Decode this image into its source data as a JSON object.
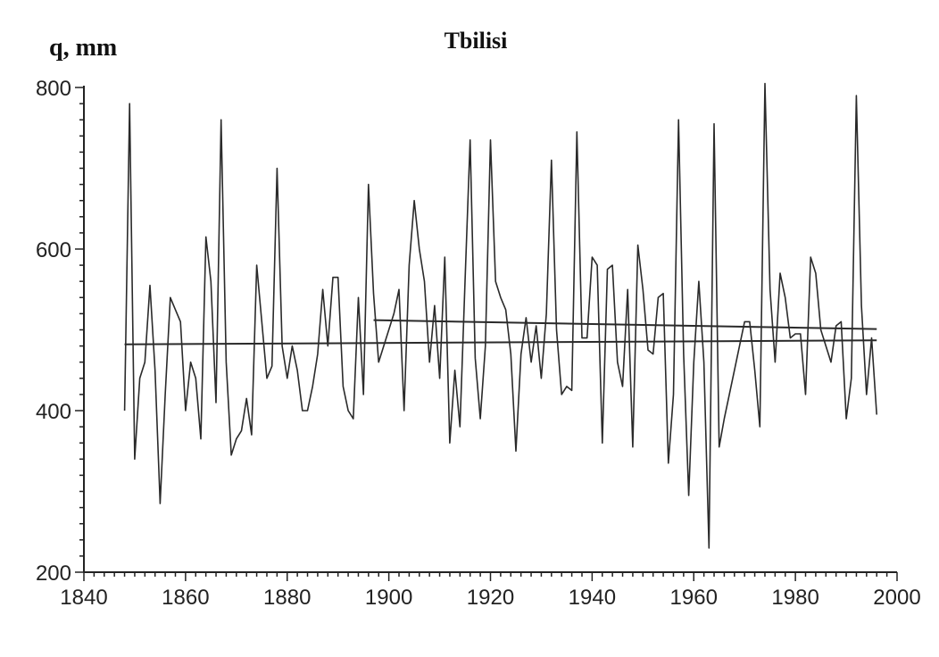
{
  "chart_data": {
    "type": "line",
    "title": "Tbilisi",
    "ylabel": "q, mm",
    "xlabel": "",
    "xlim": [
      1840,
      2000
    ],
    "ylim": [
      200,
      800
    ],
    "x_ticks": [
      1840,
      1860,
      1880,
      1900,
      1920,
      1940,
      1960,
      1980,
      2000
    ],
    "y_ticks": [
      200,
      400,
      600,
      800
    ],
    "grid": false,
    "legend": "none",
    "series": [
      {
        "x": [
          1848,
          1849,
          1850,
          1851,
          1852,
          1853,
          1854,
          1855,
          1856,
          1857,
          1858,
          1859,
          1860,
          1861,
          1862,
          1863,
          1864,
          1865,
          1866,
          1867,
          1868,
          1869,
          1870,
          1871,
          1872,
          1873,
          1874,
          1875,
          1876,
          1877,
          1878,
          1879,
          1880,
          1881,
          1882,
          1883,
          1884,
          1885,
          1886,
          1887,
          1888,
          1889,
          1890,
          1891,
          1892,
          1893,
          1894,
          1895,
          1896,
          1897,
          1898,
          1899,
          1900,
          1901,
          1902,
          1903,
          1904,
          1905,
          1906,
          1907,
          1908,
          1909,
          1910,
          1911,
          1912,
          1913,
          1914,
          1915,
          1916,
          1917,
          1918,
          1919,
          1920,
          1921,
          1922,
          1923,
          1924,
          1925,
          1926,
          1927,
          1928,
          1929,
          1930,
          1931,
          1932,
          1933,
          1934,
          1935,
          1936,
          1937,
          1938,
          1939,
          1940,
          1941,
          1942,
          1943,
          1944,
          1945,
          1946,
          1947,
          1948,
          1949,
          1950,
          1951,
          1952,
          1953,
          1954,
          1955,
          1956,
          1957,
          1958,
          1959,
          1960,
          1961,
          1962,
          1963,
          1964,
          1965,
          1966,
          1967,
          1968,
          1969,
          1970,
          1971,
          1972,
          1973,
          1974,
          1975,
          1976,
          1977,
          1978,
          1979,
          1980,
          1981,
          1982,
          1983,
          1984,
          1985,
          1986,
          1987,
          1988,
          1989,
          1990,
          1991,
          1992,
          1993,
          1994,
          1995,
          1996
        ],
        "values": [
          400,
          780,
          340,
          440,
          460,
          555,
          450,
          285,
          420,
          540,
          525,
          510,
          400,
          460,
          440,
          365,
          615,
          560,
          410,
          760,
          460,
          345,
          365,
          375,
          415,
          370,
          580,
          510,
          440,
          455,
          700,
          480,
          440,
          480,
          450,
          400,
          400,
          430,
          470,
          550,
          480,
          565,
          565,
          430,
          400,
          390,
          540,
          420,
          680,
          545,
          460,
          480,
          500,
          520,
          550,
          400,
          580,
          660,
          600,
          560,
          460,
          530,
          440,
          590,
          360,
          450,
          380,
          560,
          735,
          465,
          390,
          480,
          735,
          560,
          540,
          525,
          470,
          350,
          470,
          515,
          460,
          505,
          440,
          520,
          710,
          500,
          420,
          430,
          425,
          745,
          490,
          490,
          590,
          580,
          360,
          575,
          580,
          460,
          430,
          550,
          355,
          605,
          550,
          475,
          470,
          540,
          545,
          335,
          420,
          760,
          470,
          295,
          460,
          560,
          460,
          230,
          755,
          355,
          390,
          420,
          450,
          480,
          510,
          510,
          450,
          380,
          805,
          550,
          460,
          570,
          540,
          490,
          495,
          495,
          420,
          590,
          570,
          500,
          480,
          460,
          505,
          510,
          390,
          440,
          790,
          530,
          420,
          490,
          395
        ]
      }
    ],
    "trend_lines": [
      {
        "x": [
          1848,
          1996
        ],
        "values": [
          482,
          487
        ]
      },
      {
        "x": [
          1897,
          1996
        ],
        "values": [
          512,
          501
        ]
      }
    ]
  }
}
